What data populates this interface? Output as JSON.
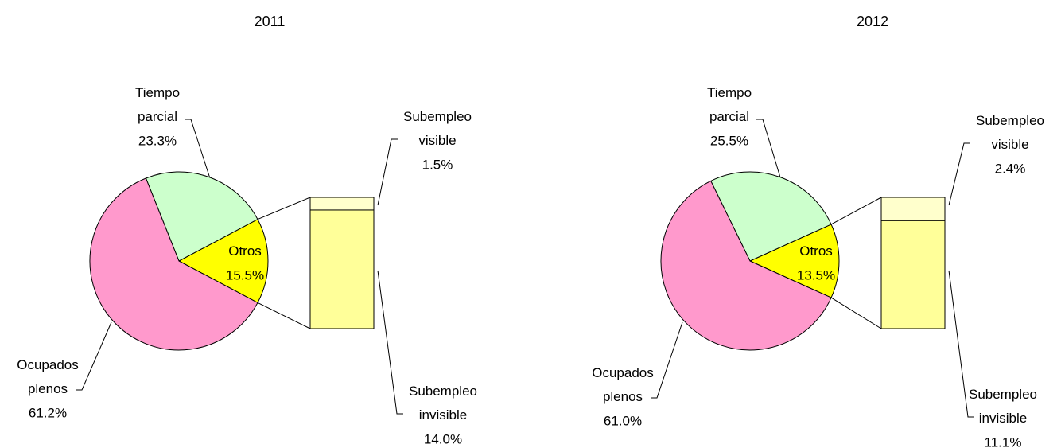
{
  "chart_data": [
    {
      "type": "bar_of_pie",
      "title": "2011",
      "categories": [
        "Ocupados plenos",
        "Tiempo parcial",
        "Otros"
      ],
      "values": [
        61.2,
        23.3,
        15.5
      ],
      "value_labels": [
        "61.2%",
        "23.3%",
        "15.5%"
      ],
      "colors": [
        "#ff99cc",
        "#ccffcc",
        "#ffff00"
      ],
      "bar_categories": [
        "Subempleo visible",
        "Subempleo invisible"
      ],
      "bar_values": [
        1.5,
        14.0
      ],
      "bar_value_labels": [
        "1.5%",
        "14.0%"
      ],
      "bar_colors": [
        "#ffffcc",
        "#ffff99"
      ]
    },
    {
      "type": "bar_of_pie",
      "title": "2012",
      "categories": [
        "Ocupados plenos",
        "Tiempo parcial",
        "Otros"
      ],
      "values": [
        61.0,
        25.5,
        13.5
      ],
      "value_labels": [
        "61.0%",
        "25.5%",
        "13.5%"
      ],
      "colors": [
        "#ff99cc",
        "#ccffcc",
        "#ffff00"
      ],
      "bar_categories": [
        "Subempleo visible",
        "Subempleo invisible"
      ],
      "bar_values": [
        2.4,
        11.1
      ],
      "bar_value_labels": [
        "2.4%",
        "11.1%"
      ],
      "bar_colors": [
        "#ffffcc",
        "#ffff99"
      ]
    }
  ]
}
